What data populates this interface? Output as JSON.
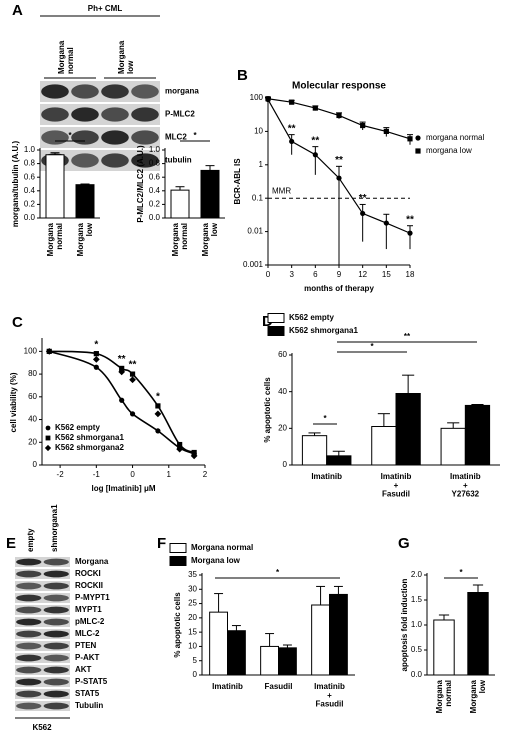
{
  "figure": {
    "letters": [
      "A",
      "B",
      "C",
      "D",
      "E",
      "F",
      "G"
    ],
    "blot_a": {
      "title": "Ph+ CML",
      "lanes": [
        "Morgana\nnormal",
        "Morgana\nlow"
      ],
      "rows": [
        "morgana",
        "P-MLC2",
        "MLC2",
        "tubulin"
      ]
    },
    "blot_e": {
      "lanes": [
        "empty",
        "shmorgana1"
      ],
      "rows": [
        "Morgana",
        "ROCKI",
        "ROCKII",
        "P-MYPT1",
        "MYPT1",
        "pMLC-2",
        "MLC-2",
        "PTEN",
        "P-AKT",
        "AKT",
        "P-STAT5",
        "STAT5",
        "Tubulin"
      ],
      "cell_line": "K562"
    }
  },
  "chart_data": [
    {
      "type": "bar",
      "y_label": "morgana/tubulin (A.U.)",
      "categories": [
        "Morgana\nnormal",
        "Morgana\nlow"
      ],
      "values": [
        0.93,
        0.49
      ],
      "errors": [
        0.03,
        0.01
      ],
      "colors": [
        "#ffffff",
        "#000000"
      ],
      "ylim": [
        0,
        1.0
      ],
      "yticks": [
        {
          "value": 0,
          "label": "0.0"
        },
        0.2,
        0.4,
        0.6,
        0.8,
        {
          "value": 1,
          "label": "1.0"
        }
      ],
      "annotations": [
        "*"
      ]
    },
    {
      "type": "bar",
      "y_label": "P-MLC2/MLC2 (A.U.)",
      "categories": [
        "Morgana\nnormal",
        "Morgana\nlow"
      ],
      "values": [
        0.41,
        0.7
      ],
      "errors": [
        0.05,
        0.07
      ],
      "colors": [
        "#ffffff",
        "#000000"
      ],
      "ylim": [
        0,
        1.0
      ],
      "yticks": [
        {
          "value": 0,
          "label": "0.0"
        },
        0.2,
        0.4,
        0.6,
        0.8,
        {
          "value": 1,
          "label": "1.0"
        }
      ],
      "annotations": [
        "*"
      ]
    },
    {
      "type": "line",
      "title": "Molecular response",
      "y_label": "BCR-ABL IS",
      "x_label": "months of therapy",
      "x": [
        0,
        3,
        6,
        9,
        12,
        15,
        18
      ],
      "xlim": [
        0,
        18
      ],
      "xticks": [
        0,
        3,
        6,
        9,
        12,
        15,
        18
      ],
      "log_y": true,
      "ylim": [
        0.001,
        100
      ],
      "yticks": [
        0.001,
        0.01,
        0.1,
        1,
        10,
        100
      ],
      "series": [
        {
          "name": "morgana normal",
          "marker": "circle",
          "color": "#000000",
          "values": [
            90,
            5,
            2,
            0.4,
            0.035,
            0.018,
            0.009
          ],
          "errors": [
            10,
            3,
            1.5,
            0.5,
            0.03,
            0.015,
            0.006
          ]
        },
        {
          "name": "morgana low",
          "marker": "square",
          "color": "#000000",
          "values": [
            95,
            75,
            50,
            30,
            15,
            10,
            6
          ],
          "errors": [
            10,
            10,
            8,
            6,
            4,
            3,
            2
          ]
        }
      ],
      "reference_line": {
        "value": 0.1,
        "label": "MMR"
      },
      "annotations": [
        "**",
        "**",
        "**",
        "**",
        "**"
      ]
    },
    {
      "type": "scatter",
      "x_label": "log [Imatinib] μM",
      "y_label": "cell viability (%)",
      "x": [
        -2.3,
        -1,
        -0.3,
        0,
        0.7,
        1.3,
        1.7
      ],
      "xlim": [
        -2.5,
        2
      ],
      "xticks": [
        -2,
        -1,
        0,
        1,
        2
      ],
      "ylim": [
        0,
        110
      ],
      "yticks": [
        0,
        20,
        40,
        60,
        80,
        100
      ],
      "series": [
        {
          "name": "K562 empty",
          "marker": "circle",
          "fit_curve": true,
          "color": "#000000",
          "values": [
            100,
            86,
            57,
            45,
            30,
            15,
            10
          ]
        },
        {
          "name": "K562 shmorgana1",
          "marker": "square",
          "fit_curve": true,
          "color": "#000000",
          "values": [
            100,
            98,
            85,
            80,
            52,
            18,
            11
          ]
        },
        {
          "name": "K562 shmorgana2",
          "marker": "diamond",
          "fit_curve": false,
          "color": "#000000",
          "values": [
            100,
            93,
            82,
            75,
            45,
            14,
            8
          ]
        }
      ],
      "annotations": [
        "*",
        "**",
        "**",
        "*"
      ]
    },
    {
      "type": "bar",
      "y_label": "% apoptotic cells",
      "categories": [
        "Imatinib",
        "Imatinib\n+\nFasudil",
        "Imatinib\n+\nY27632"
      ],
      "ylim": [
        0,
        60
      ],
      "yticks": [
        0,
        20,
        40,
        60
      ],
      "series": [
        {
          "name": "K562 empty",
          "color": "#ffffff",
          "values": [
            16,
            21,
            20
          ],
          "errors": [
            1.5,
            7,
            3
          ]
        },
        {
          "name": "K562 shmorgana1",
          "color": "#000000",
          "values": [
            5,
            39,
            32.5
          ],
          "errors": [
            2.5,
            10,
            0.5
          ]
        }
      ],
      "annotations": [
        "*",
        "*",
        "**"
      ]
    },
    {
      "type": "bar",
      "y_label": "% apoptotic cells",
      "categories": [
        "Imatinib",
        "Fasudil",
        "Imatinib\n+\nFasudil"
      ],
      "ylim": [
        0,
        35
      ],
      "yticks": [
        0,
        5,
        10,
        15,
        20,
        25,
        30,
        35
      ],
      "series": [
        {
          "name": "Morgana normal",
          "color": "#ffffff",
          "values": [
            22,
            10,
            24.5
          ],
          "errors": [
            6.5,
            4.5,
            6.5
          ]
        },
        {
          "name": "Morgana low",
          "color": "#000000",
          "values": [
            15.5,
            9.5,
            28.2
          ],
          "errors": [
            1.8,
            1,
            2.8
          ]
        }
      ],
      "annotations": [
        "*"
      ]
    },
    {
      "type": "bar",
      "y_label": "apoptosis fold induction",
      "categories": [
        "Morgana\nnormal",
        "Morgana\nlow"
      ],
      "values": [
        1.1,
        1.65
      ],
      "errors": [
        0.1,
        0.15
      ],
      "colors": [
        "#ffffff",
        "#000000"
      ],
      "ylim": [
        0,
        2.0
      ],
      "yticks": [
        {
          "value": 0,
          "label": "0.0"
        },
        0.5,
        {
          "value": 1,
          "label": "1.0"
        },
        1.5,
        {
          "value": 2,
          "label": "2.0"
        }
      ],
      "annotations": [
        "*"
      ]
    }
  ]
}
